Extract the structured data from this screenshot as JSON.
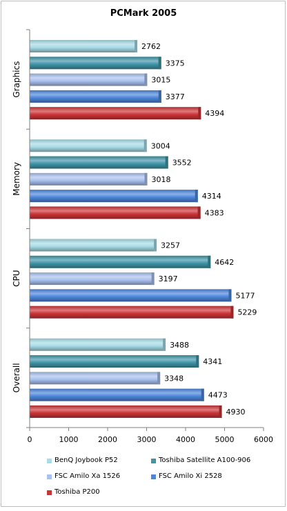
{
  "chart_data": {
    "type": "bar",
    "orientation": "horizontal",
    "title": "PCMark 2005",
    "categories": [
      "Graphics",
      "Memory",
      "CPU",
      "Overall"
    ],
    "series": [
      {
        "name": "BenQ Joybook P52",
        "values": [
          2762,
          3004,
          3257,
          3488
        ],
        "color": "#a8dce6"
      },
      {
        "name": "Toshiba Satellite A100-906",
        "values": [
          3375,
          3552,
          4642,
          4341
        ],
        "color": "#3f95a8"
      },
      {
        "name": "FSC Amilo Xa 1526",
        "values": [
          3015,
          3018,
          3197,
          3348
        ],
        "color": "#a9c1ee"
      },
      {
        "name": "FSC Amilo Xi 2528",
        "values": [
          3377,
          4314,
          5177,
          4473
        ],
        "color": "#4d86dc"
      },
      {
        "name": "Toshiba P200",
        "values": [
          4394,
          4383,
          5229,
          4930
        ],
        "color": "#cc3437"
      }
    ],
    "xlim": [
      0,
      6000
    ],
    "xticks": [
      "0",
      "1000",
      "2000",
      "3000",
      "4000",
      "5000",
      "6000"
    ],
    "data_labels": true,
    "grid": false,
    "legend_position": "bottom"
  }
}
